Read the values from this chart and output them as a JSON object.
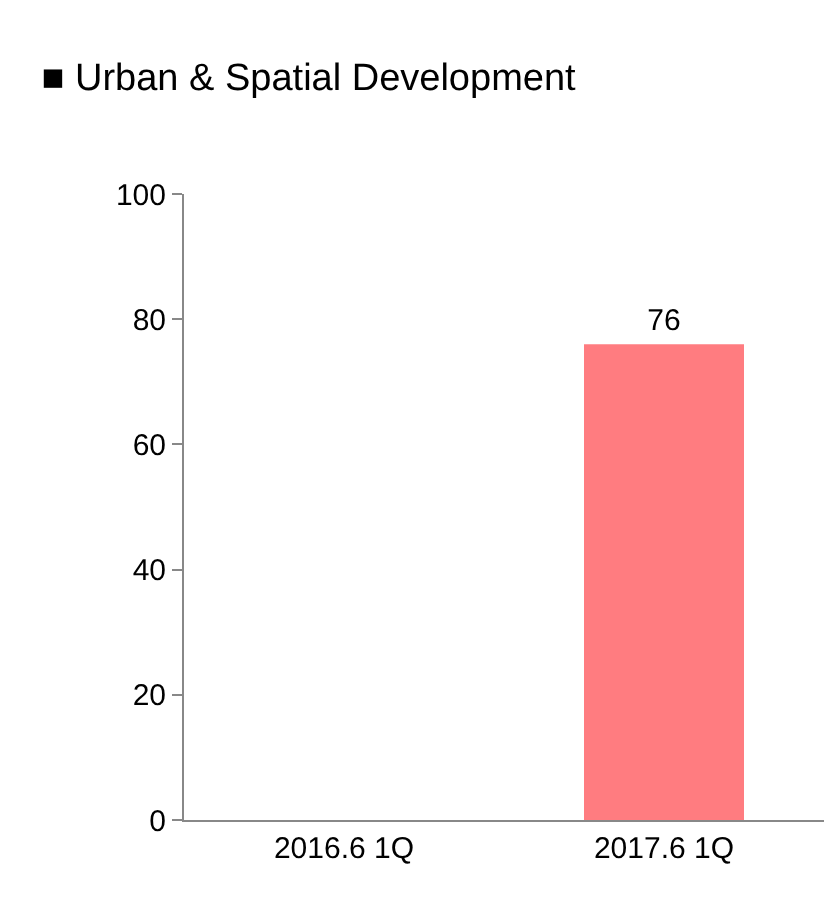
{
  "chart_data": {
    "type": "bar",
    "title": "■ Urban & Spatial Development",
    "categories": [
      "2016.6 1Q",
      "2017.6 1Q"
    ],
    "values": [
      null,
      76
    ],
    "color": "#ff7c80",
    "ylim": [
      0,
      100
    ],
    "yticks": [
      0,
      20,
      40,
      60,
      80,
      100
    ],
    "grid": false,
    "data_labels": true
  }
}
